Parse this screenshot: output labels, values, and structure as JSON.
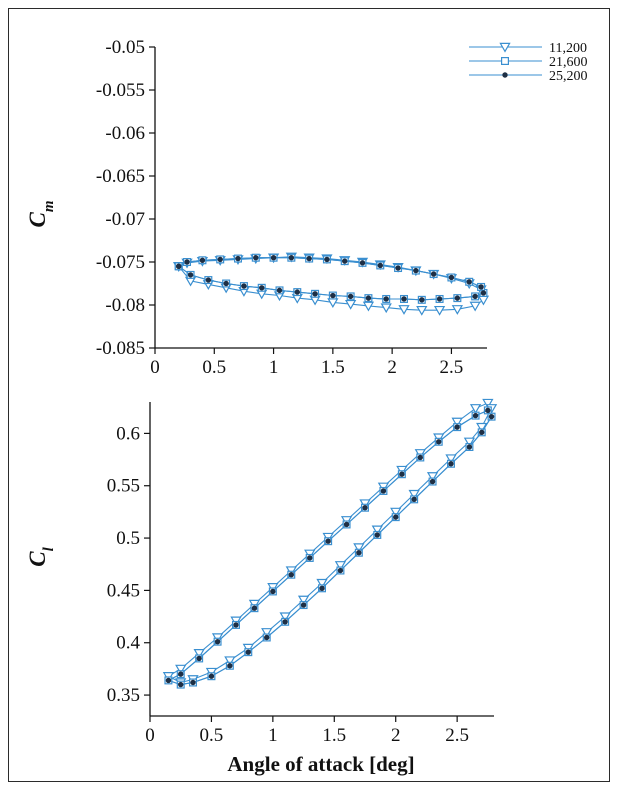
{
  "colors": {
    "series_line": "#3a8fd0",
    "marker_fill_dark": "#1e2f45",
    "axis": "#111111"
  },
  "chart_data": [
    {
      "type": "line",
      "ylabel": "C",
      "ylabel_subscript": "m",
      "xlabel": "",
      "xlim": [
        0,
        2.8
      ],
      "ylim": [
        -0.085,
        -0.05
      ],
      "xticks": [
        "0",
        "0.5",
        "1",
        "1.5",
        "2",
        "2.5"
      ],
      "yticks": [
        "-0.05",
        "-0.055",
        "-0.06",
        "-0.065",
        "-0.07",
        "-0.075",
        "-0.08",
        "-0.085"
      ],
      "legend_position": "top-right",
      "series": [
        {
          "name": "11,200",
          "marker": "triangle-down",
          "x": [
            0.2,
            0.3,
            0.45,
            0.6,
            0.75,
            0.9,
            1.05,
            1.2,
            1.35,
            1.5,
            1.65,
            1.8,
            1.95,
            2.1,
            2.25,
            2.4,
            2.55,
            2.7,
            2.77,
            2.75,
            2.65,
            2.5,
            2.35,
            2.2,
            2.05,
            1.9,
            1.75,
            1.6,
            1.45,
            1.3,
            1.15,
            1.0,
            0.85,
            0.7,
            0.55,
            0.4,
            0.27,
            0.2
          ],
          "y": [
            -0.0755,
            -0.0772,
            -0.0776,
            -0.078,
            -0.0784,
            -0.0787,
            -0.0789,
            -0.0792,
            -0.0794,
            -0.0797,
            -0.0799,
            -0.0801,
            -0.0803,
            -0.0805,
            -0.0806,
            -0.0806,
            -0.0805,
            -0.0801,
            -0.0794,
            -0.0782,
            -0.0775,
            -0.0769,
            -0.0764,
            -0.076,
            -0.0756,
            -0.0753,
            -0.075,
            -0.0748,
            -0.0746,
            -0.0745,
            -0.0744,
            -0.0745,
            -0.0746,
            -0.0747,
            -0.0748,
            -0.0749,
            -0.0751,
            -0.0755
          ]
        },
        {
          "name": "21,600",
          "marker": "square",
          "x": [
            0.2,
            0.3,
            0.45,
            0.6,
            0.75,
            0.9,
            1.05,
            1.2,
            1.35,
            1.5,
            1.65,
            1.8,
            1.95,
            2.1,
            2.25,
            2.4,
            2.55,
            2.7,
            2.77,
            2.75,
            2.65,
            2.5,
            2.35,
            2.2,
            2.05,
            1.9,
            1.75,
            1.6,
            1.45,
            1.3,
            1.15,
            1.0,
            0.85,
            0.7,
            0.55,
            0.4,
            0.27,
            0.2
          ],
          "y": [
            -0.0755,
            -0.0765,
            -0.0771,
            -0.0775,
            -0.0778,
            -0.078,
            -0.0783,
            -0.0785,
            -0.0787,
            -0.0789,
            -0.079,
            -0.0792,
            -0.0793,
            -0.0793,
            -0.0794,
            -0.0793,
            -0.0792,
            -0.079,
            -0.0786,
            -0.0779,
            -0.0773,
            -0.0768,
            -0.0764,
            -0.076,
            -0.0757,
            -0.0754,
            -0.0751,
            -0.0749,
            -0.0747,
            -0.0746,
            -0.0745,
            -0.0745,
            -0.0745,
            -0.0746,
            -0.0747,
            -0.0748,
            -0.075,
            -0.0755
          ]
        },
        {
          "name": "25,200",
          "marker": "dot",
          "x": [
            0.2,
            0.3,
            0.45,
            0.6,
            0.75,
            0.9,
            1.05,
            1.2,
            1.35,
            1.5,
            1.65,
            1.8,
            1.95,
            2.1,
            2.25,
            2.4,
            2.55,
            2.7,
            2.77,
            2.75,
            2.65,
            2.5,
            2.35,
            2.2,
            2.05,
            1.9,
            1.75,
            1.6,
            1.45,
            1.3,
            1.15,
            1.0,
            0.85,
            0.7,
            0.55,
            0.4,
            0.27,
            0.2
          ],
          "y": [
            -0.0755,
            -0.0765,
            -0.0771,
            -0.0775,
            -0.0778,
            -0.078,
            -0.0783,
            -0.0785,
            -0.0787,
            -0.0789,
            -0.079,
            -0.0792,
            -0.0793,
            -0.0793,
            -0.0794,
            -0.0793,
            -0.0792,
            -0.079,
            -0.0786,
            -0.0779,
            -0.0773,
            -0.0768,
            -0.0764,
            -0.076,
            -0.0757,
            -0.0754,
            -0.0751,
            -0.0749,
            -0.0747,
            -0.0746,
            -0.0745,
            -0.0745,
            -0.0745,
            -0.0746,
            -0.0747,
            -0.0748,
            -0.075,
            -0.0755
          ]
        }
      ]
    },
    {
      "type": "line",
      "ylabel": "C",
      "ylabel_subscript": "l",
      "xlabel": "Angle of attack [deg]",
      "xlim": [
        0,
        2.8
      ],
      "ylim": [
        0.33,
        0.63
      ],
      "xticks": [
        "0",
        "0.5",
        "1",
        "1.5",
        "2",
        "2.5"
      ],
      "yticks": [
        "0.35",
        "0.4",
        "0.45",
        "0.5",
        "0.55",
        "0.6"
      ],
      "series": [
        {
          "name": "11,200",
          "marker": "triangle-down",
          "x": [
            0.15,
            0.25,
            0.4,
            0.55,
            0.7,
            0.85,
            1.0,
            1.15,
            1.3,
            1.45,
            1.6,
            1.75,
            1.9,
            2.05,
            2.2,
            2.35,
            2.5,
            2.65,
            2.75,
            2.78,
            2.7,
            2.6,
            2.45,
            2.3,
            2.15,
            2.0,
            1.85,
            1.7,
            1.55,
            1.4,
            1.25,
            1.1,
            0.95,
            0.8,
            0.65,
            0.5,
            0.35,
            0.25
          ],
          "y": [
            0.368,
            0.375,
            0.39,
            0.405,
            0.421,
            0.437,
            0.453,
            0.469,
            0.485,
            0.501,
            0.517,
            0.533,
            0.549,
            0.565,
            0.581,
            0.596,
            0.611,
            0.624,
            0.629,
            0.624,
            0.606,
            0.592,
            0.576,
            0.559,
            0.542,
            0.525,
            0.508,
            0.491,
            0.474,
            0.457,
            0.441,
            0.425,
            0.41,
            0.395,
            0.383,
            0.372,
            0.365,
            0.362
          ]
        },
        {
          "name": "21,600",
          "marker": "square",
          "x": [
            0.15,
            0.25,
            0.4,
            0.55,
            0.7,
            0.85,
            1.0,
            1.15,
            1.3,
            1.45,
            1.6,
            1.75,
            1.9,
            2.05,
            2.2,
            2.35,
            2.5,
            2.65,
            2.75,
            2.78,
            2.7,
            2.6,
            2.45,
            2.3,
            2.15,
            2.0,
            1.85,
            1.7,
            1.55,
            1.4,
            1.25,
            1.1,
            0.95,
            0.8,
            0.65,
            0.5,
            0.35,
            0.25
          ],
          "y": [
            0.364,
            0.37,
            0.385,
            0.401,
            0.417,
            0.433,
            0.449,
            0.465,
            0.481,
            0.497,
            0.513,
            0.529,
            0.545,
            0.561,
            0.577,
            0.592,
            0.606,
            0.617,
            0.622,
            0.616,
            0.601,
            0.587,
            0.571,
            0.554,
            0.537,
            0.52,
            0.503,
            0.486,
            0.469,
            0.452,
            0.436,
            0.42,
            0.405,
            0.391,
            0.378,
            0.368,
            0.362,
            0.36
          ]
        },
        {
          "name": "25,200",
          "marker": "dot",
          "x": [
            0.15,
            0.25,
            0.4,
            0.55,
            0.7,
            0.85,
            1.0,
            1.15,
            1.3,
            1.45,
            1.6,
            1.75,
            1.9,
            2.05,
            2.2,
            2.35,
            2.5,
            2.65,
            2.75,
            2.78,
            2.7,
            2.6,
            2.45,
            2.3,
            2.15,
            2.0,
            1.85,
            1.7,
            1.55,
            1.4,
            1.25,
            1.1,
            0.95,
            0.8,
            0.65,
            0.5,
            0.35,
            0.25
          ],
          "y": [
            0.364,
            0.37,
            0.385,
            0.401,
            0.417,
            0.433,
            0.449,
            0.465,
            0.481,
            0.497,
            0.513,
            0.529,
            0.545,
            0.561,
            0.577,
            0.592,
            0.606,
            0.617,
            0.622,
            0.616,
            0.601,
            0.587,
            0.571,
            0.554,
            0.537,
            0.52,
            0.503,
            0.486,
            0.469,
            0.452,
            0.436,
            0.42,
            0.405,
            0.391,
            0.378,
            0.368,
            0.362,
            0.36
          ]
        }
      ]
    }
  ]
}
